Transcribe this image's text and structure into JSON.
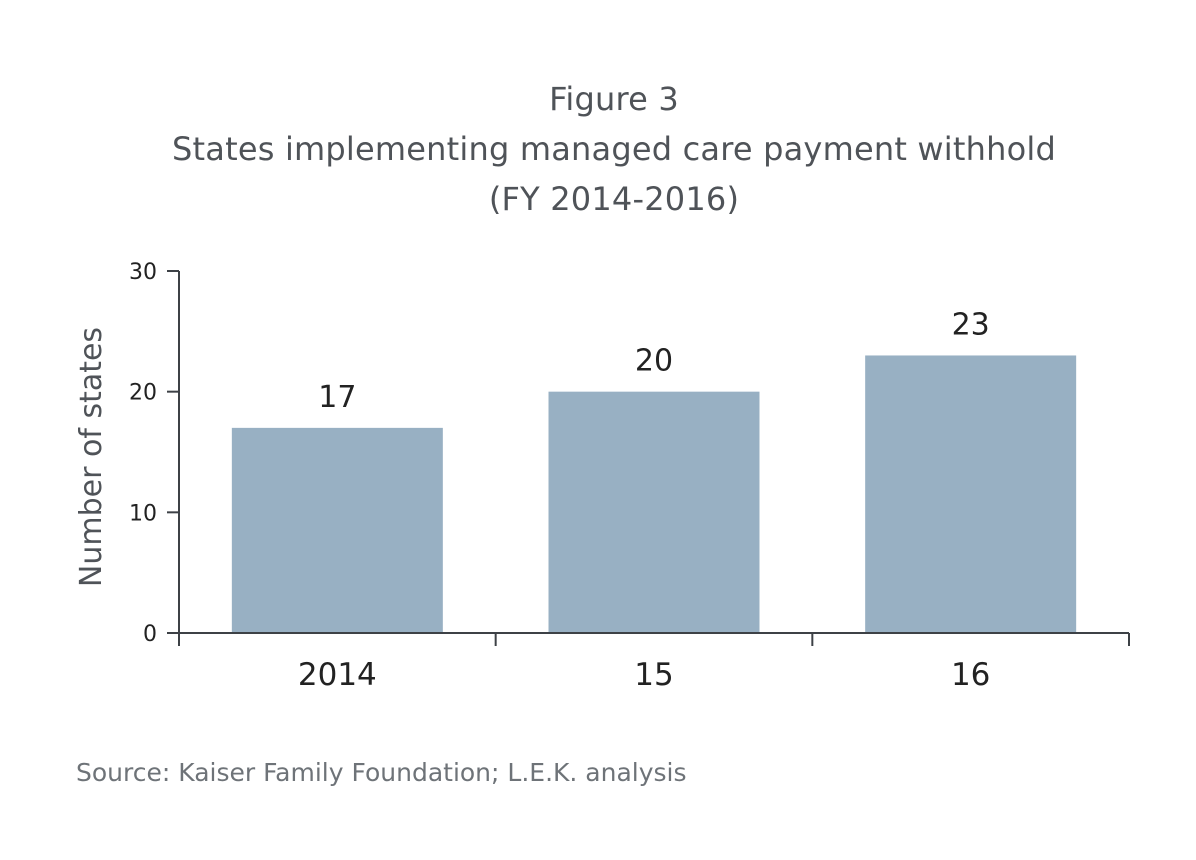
{
  "figure_label": "Figure 3",
  "title": "States implementing managed care payment withhold",
  "subtitle": "(FY 2014-2016)",
  "source": "Source: Kaiser Family Foundation; L.E.K. analysis",
  "colors": {
    "bar": "#98b0c3",
    "axis": "#3d4146",
    "text": "#222222",
    "title": "#4f5358"
  },
  "chart_data": {
    "type": "bar",
    "categories": [
      "2014",
      "15",
      "16"
    ],
    "values": [
      17,
      20,
      23
    ],
    "data_labels": [
      "17",
      "20",
      "23"
    ],
    "title": "States implementing managed care payment withhold",
    "subtitle": "(FY 2014-2016)",
    "xlabel": "",
    "ylabel": "Number of states",
    "ylim": [
      0,
      30
    ],
    "yticks": [
      0,
      10,
      20,
      30
    ],
    "grid": false,
    "legend": "none"
  }
}
